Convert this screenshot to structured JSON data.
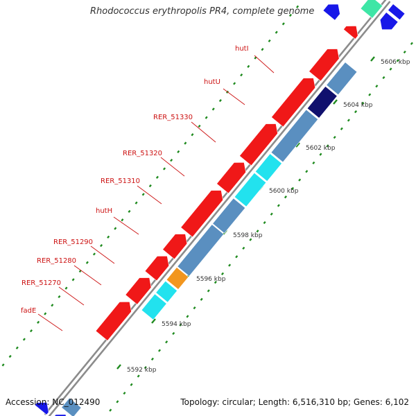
{
  "title": "Rhodococcus erythropolis PR4, complete genome",
  "footer": {
    "accession_text": "Accession: NC_012490",
    "summary_text": "Topology: circular; Length: 6,516,310 bp; Genes: 6,102"
  },
  "colors": {
    "backbone": "#8c8c8c",
    "gene_steelblue": "#5a8fc0",
    "gene_navy": "#10106e",
    "gene_cyan": "#22e2ee",
    "gene_orange": "#f2961e",
    "gene_red": "#f01818",
    "gene_blue": "#1818e8",
    "gene_teal": "#3ee6a6",
    "label_red": "#cc1111",
    "tick_green": "#1e8a1e"
  },
  "scale_labels": [
    "5592 kbp",
    "5594 kbp",
    "5596 kbp",
    "5598 kbp",
    "5600 kbp",
    "5602 kbp",
    "5604 kbp",
    "5606 kbp"
  ],
  "gene_labels": [
    "hutI",
    "hutU",
    "RER_51330",
    "RER_51320",
    "RER_51310",
    "hutH",
    "RER_51290",
    "RER_51280",
    "RER_51270",
    "fadE"
  ],
  "features": [
    {
      "track": "outer",
      "start": 0.0,
      "end": 0.025,
      "color": "gene_blue",
      "arrow": "end"
    },
    {
      "track": "outer",
      "start": 0.03,
      "end": 0.053,
      "color": "gene_steelblue",
      "arrow": "none"
    },
    {
      "track": "outer",
      "start": 0.264,
      "end": 0.303,
      "color": "gene_cyan",
      "arrow": "none",
      "label": "fadE"
    },
    {
      "track": "outer",
      "start": 0.306,
      "end": 0.334,
      "color": "gene_cyan",
      "arrow": "none",
      "label": "RER_51270"
    },
    {
      "track": "outer",
      "start": 0.337,
      "end": 0.367,
      "color": "gene_orange",
      "arrow": "none",
      "label": "RER_51280"
    },
    {
      "track": "outer",
      "start": 0.369,
      "end": 0.47,
      "color": "gene_steelblue",
      "arrow": "none",
      "label": "RER_51290"
    },
    {
      "track": "outer",
      "start": 0.472,
      "end": 0.533,
      "color": "gene_steelblue",
      "arrow": "none",
      "label": "hutH"
    },
    {
      "track": "outer",
      "start": 0.536,
      "end": 0.594,
      "color": "gene_cyan",
      "arrow": "none",
      "label": "RER_51310"
    },
    {
      "track": "outer",
      "start": 0.597,
      "end": 0.64,
      "color": "gene_cyan",
      "arrow": "none",
      "label": "RER_51320"
    },
    {
      "track": "outer",
      "start": 0.643,
      "end": 0.746,
      "color": "gene_steelblue",
      "arrow": "none",
      "label": "RER_51330"
    },
    {
      "track": "outer",
      "start": 0.749,
      "end": 0.802,
      "color": "gene_navy",
      "arrow": "none",
      "label": "hutU"
    },
    {
      "track": "outer",
      "start": 0.805,
      "end": 0.86,
      "color": "gene_steelblue",
      "arrow": "none",
      "label": "hutI"
    },
    {
      "track": "outer",
      "start": 0.95,
      "end": 0.98,
      "color": "gene_blue",
      "arrow": "start"
    },
    {
      "track": "outer",
      "start": 0.985,
      "end": 1.0,
      "color": "gene_blue",
      "arrow": "none"
    },
    {
      "track": "inner",
      "start": 0.002,
      "end": 0.02,
      "color": "gene_blue",
      "arrow": "end"
    },
    {
      "track": "inner",
      "start": 0.18,
      "end": 0.262,
      "color": "gene_red",
      "arrow": "end"
    },
    {
      "track": "inner",
      "start": 0.267,
      "end": 0.32,
      "color": "gene_red",
      "arrow": "end"
    },
    {
      "track": "inner",
      "start": 0.324,
      "end": 0.372,
      "color": "gene_red",
      "arrow": "end"
    },
    {
      "track": "inner",
      "start": 0.376,
      "end": 0.425,
      "color": "gene_red",
      "arrow": "end"
    },
    {
      "track": "inner",
      "start": 0.429,
      "end": 0.53,
      "color": "gene_red",
      "arrow": "end"
    },
    {
      "track": "inner",
      "start": 0.534,
      "end": 0.597,
      "color": "gene_red",
      "arrow": "end"
    },
    {
      "track": "inner",
      "start": 0.601,
      "end": 0.69,
      "color": "gene_red",
      "arrow": "end"
    },
    {
      "track": "inner",
      "start": 0.694,
      "end": 0.8,
      "color": "gene_red",
      "arrow": "end"
    },
    {
      "track": "inner",
      "start": 0.804,
      "end": 0.87,
      "color": "gene_red",
      "arrow": "end"
    },
    {
      "track": "inner",
      "start": 0.905,
      "end": 0.925,
      "color": "gene_red",
      "arrow": "end"
    },
    {
      "track": "inner",
      "start": 0.908,
      "end": 0.935,
      "color": "gene_blue",
      "arrow": "end",
      "offset": 1
    },
    {
      "track": "inner",
      "start": 0.955,
      "end": 0.985,
      "color": "gene_teal",
      "arrow": "none"
    }
  ]
}
